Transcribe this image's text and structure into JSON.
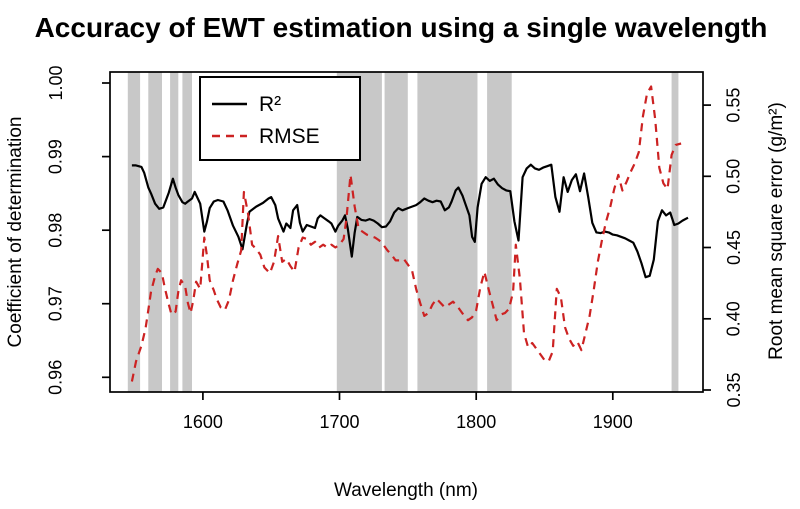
{
  "chart_data": {
    "type": "line",
    "title": "Accuracy of EWT estimation using a single wavelength",
    "xlabel": "Wavelength (nm)",
    "ylabel_left": "Coefficient of determination",
    "ylabel_right": "Root mean square error (g/m²)",
    "grid": "off",
    "legend_position": "top-left-inside",
    "xlim": [
      1532,
      1966
    ],
    "ylim_left": [
      0.958,
      1.0015
    ],
    "ylim_right": [
      0.3486,
      0.5732
    ],
    "x_tick_values": [
      1600,
      1700,
      1800,
      1900
    ],
    "x_ticks": [
      "1600",
      "1700",
      "1800",
      "1900"
    ],
    "y_left_tick_values": [
      0.96,
      0.97,
      0.98,
      0.99,
      1.0
    ],
    "y_left_ticks": [
      "0.96",
      "0.97",
      "0.98",
      "0.99",
      "1.00"
    ],
    "y_right_tick_values": [
      0.35,
      0.4,
      0.45,
      0.5,
      0.55
    ],
    "y_right_ticks": [
      "0.35",
      "0.40",
      "0.45",
      "0.50",
      "0.55"
    ],
    "colors": {
      "r2_line": "#000000",
      "rmse_line": "#cc2222",
      "band": "#c8c8c8",
      "background": "#ffffff"
    },
    "legend": {
      "entries": [
        {
          "label": "R²",
          "color": "#000000",
          "style": "solid"
        },
        {
          "label": "RMSE",
          "color": "#cc2222",
          "style": "dashed"
        }
      ]
    },
    "shaded_bands_nm": [
      [
        1545,
        1554
      ],
      [
        1560,
        1570
      ],
      [
        1576,
        1582
      ],
      [
        1585,
        1592
      ],
      [
        1698,
        1731
      ],
      [
        1733,
        1750
      ],
      [
        1757,
        1801
      ],
      [
        1808,
        1826
      ],
      [
        1943,
        1948
      ]
    ],
    "series": [
      {
        "name": "R2",
        "axis": "left",
        "color": "#000000",
        "style": "solid",
        "x": [
          1548,
          1551,
          1555,
          1557,
          1560,
          1562,
          1565,
          1568,
          1571,
          1575,
          1578,
          1580,
          1582,
          1585,
          1587,
          1589,
          1592,
          1594,
          1598,
          1601,
          1603,
          1605,
          1608,
          1611,
          1615,
          1618,
          1622,
          1626,
          1629,
          1632,
          1634,
          1639,
          1644,
          1648,
          1650,
          1653,
          1655,
          1659,
          1661,
          1664,
          1666,
          1669,
          1671,
          1673,
          1676,
          1679,
          1682,
          1684,
          1686,
          1689,
          1692,
          1694,
          1697,
          1699,
          1702,
          1704,
          1706,
          1709,
          1711,
          1713,
          1716,
          1719,
          1722,
          1725,
          1728,
          1731,
          1734,
          1737,
          1740,
          1743,
          1746,
          1750,
          1753,
          1756,
          1759,
          1762,
          1765,
          1768,
          1771,
          1774,
          1777,
          1780,
          1782,
          1785,
          1787,
          1790,
          1792,
          1795,
          1797,
          1799,
          1801,
          1804,
          1807,
          1810,
          1813,
          1816,
          1819,
          1822,
          1825,
          1828,
          1831,
          1834,
          1837,
          1840,
          1843,
          1846,
          1849,
          1852,
          1855,
          1858,
          1861,
          1864,
          1867,
          1870,
          1873,
          1876,
          1879,
          1882,
          1885,
          1888,
          1891,
          1894,
          1897,
          1900,
          1903,
          1906,
          1909,
          1912,
          1915,
          1918,
          1921,
          1924,
          1927,
          1930,
          1933,
          1936,
          1939,
          1942,
          1945,
          1948,
          1951,
          1955
        ],
        "y": [
          0.9888,
          0.9888,
          0.9886,
          0.9878,
          0.9858,
          0.985,
          0.9836,
          0.9829,
          0.9831,
          0.9851,
          0.987,
          0.9858,
          0.9848,
          0.9838,
          0.9836,
          0.9839,
          0.9843,
          0.9852,
          0.9836,
          0.9798,
          0.9812,
          0.983,
          0.9839,
          0.9841,
          0.9839,
          0.9827,
          0.9806,
          0.9791,
          0.9774,
          0.9806,
          0.9825,
          0.9832,
          0.9837,
          0.9843,
          0.9845,
          0.9834,
          0.9816,
          0.9798,
          0.9809,
          0.9803,
          0.9827,
          0.9834,
          0.981,
          0.9798,
          0.9807,
          0.9805,
          0.9803,
          0.9816,
          0.982,
          0.9816,
          0.9812,
          0.9809,
          0.9798,
          0.9806,
          0.9813,
          0.982,
          0.9803,
          0.9764,
          0.9796,
          0.9818,
          0.9814,
          0.9813,
          0.9815,
          0.9813,
          0.9809,
          0.9804,
          0.9805,
          0.9812,
          0.9824,
          0.983,
          0.9827,
          0.983,
          0.9832,
          0.9834,
          0.9838,
          0.9843,
          0.984,
          0.9838,
          0.984,
          0.9839,
          0.9827,
          0.9831,
          0.9839,
          0.9854,
          0.9858,
          0.9847,
          0.9836,
          0.982,
          0.9791,
          0.9784,
          0.9831,
          0.9863,
          0.9872,
          0.9867,
          0.987,
          0.9862,
          0.9857,
          0.9854,
          0.9853,
          0.9812,
          0.9786,
          0.9872,
          0.9884,
          0.9889,
          0.9884,
          0.9882,
          0.9885,
          0.9887,
          0.9889,
          0.9845,
          0.9825,
          0.9872,
          0.9852,
          0.9868,
          0.9876,
          0.9853,
          0.9877,
          0.9845,
          0.981,
          0.9797,
          0.9796,
          0.9798,
          0.9797,
          0.9794,
          0.9793,
          0.9791,
          0.9789,
          0.9786,
          0.9783,
          0.9771,
          0.9755,
          0.9736,
          0.9738,
          0.976,
          0.9812,
          0.9827,
          0.982,
          0.9824,
          0.9807,
          0.9809,
          0.9813,
          0.9817
        ]
      },
      {
        "name": "RMSE",
        "axis": "right",
        "color": "#cc2222",
        "style": "dashed",
        "x": [
          1548,
          1551,
          1555,
          1558,
          1560,
          1562,
          1565,
          1567,
          1570,
          1572,
          1575,
          1577,
          1580,
          1582,
          1584,
          1587,
          1589,
          1591,
          1593,
          1595,
          1598,
          1601,
          1603,
          1605,
          1608,
          1610,
          1613,
          1616,
          1619,
          1622,
          1625,
          1628,
          1630,
          1633,
          1636,
          1639,
          1642,
          1645,
          1649,
          1652,
          1655,
          1658,
          1661,
          1664,
          1667,
          1670,
          1673,
          1676,
          1679,
          1682,
          1685,
          1688,
          1691,
          1694,
          1697,
          1700,
          1703,
          1705,
          1708,
          1711,
          1714,
          1717,
          1720,
          1723,
          1726,
          1729,
          1732,
          1735,
          1738,
          1741,
          1744,
          1747,
          1750,
          1753,
          1756,
          1759,
          1762,
          1765,
          1768,
          1771,
          1774,
          1777,
          1780,
          1783,
          1786,
          1789,
          1792,
          1794,
          1797,
          1800,
          1803,
          1806,
          1809,
          1812,
          1815,
          1818,
          1821,
          1824,
          1827,
          1829,
          1832,
          1835,
          1838,
          1841,
          1844,
          1847,
          1850,
          1853,
          1856,
          1859,
          1862,
          1865,
          1868,
          1871,
          1874,
          1877,
          1880,
          1883,
          1886,
          1889,
          1892,
          1895,
          1898,
          1901,
          1904,
          1907,
          1910,
          1913,
          1916,
          1919,
          1922,
          1925,
          1928,
          1931,
          1934,
          1937,
          1940,
          1943,
          1946,
          1950
        ],
        "y": [
          0.356,
          0.37,
          0.381,
          0.393,
          0.406,
          0.419,
          0.43,
          0.435,
          0.432,
          0.422,
          0.41,
          0.403,
          0.405,
          0.419,
          0.427,
          0.423,
          0.411,
          0.404,
          0.413,
          0.426,
          0.421,
          0.457,
          0.444,
          0.427,
          0.42,
          0.414,
          0.408,
          0.406,
          0.413,
          0.427,
          0.438,
          0.448,
          0.489,
          0.474,
          0.452,
          0.449,
          0.445,
          0.436,
          0.432,
          0.44,
          0.458,
          0.44,
          0.442,
          0.437,
          0.433,
          0.45,
          0.457,
          0.456,
          0.452,
          0.454,
          0.45,
          0.452,
          0.45,
          0.452,
          0.45,
          0.452,
          0.456,
          0.47,
          0.501,
          0.479,
          0.463,
          0.461,
          0.459,
          0.458,
          0.457,
          0.455,
          0.452,
          0.448,
          0.445,
          0.441,
          0.441,
          0.442,
          0.438,
          0.434,
          0.421,
          0.411,
          0.402,
          0.404,
          0.41,
          0.414,
          0.411,
          0.408,
          0.41,
          0.412,
          0.409,
          0.405,
          0.401,
          0.399,
          0.401,
          0.406,
          0.422,
          0.433,
          0.421,
          0.41,
          0.399,
          0.403,
          0.404,
          0.407,
          0.419,
          0.452,
          0.428,
          0.39,
          0.38,
          0.383,
          0.379,
          0.375,
          0.371,
          0.37,
          0.377,
          0.421,
          0.415,
          0.394,
          0.386,
          0.381,
          0.384,
          0.378,
          0.39,
          0.402,
          0.42,
          0.44,
          0.455,
          0.468,
          0.478,
          0.491,
          0.501,
          0.49,
          0.496,
          0.503,
          0.509,
          0.517,
          0.542,
          0.558,
          0.563,
          0.54,
          0.506,
          0.495,
          0.491,
          0.515,
          0.522,
          0.523
        ]
      }
    ]
  }
}
